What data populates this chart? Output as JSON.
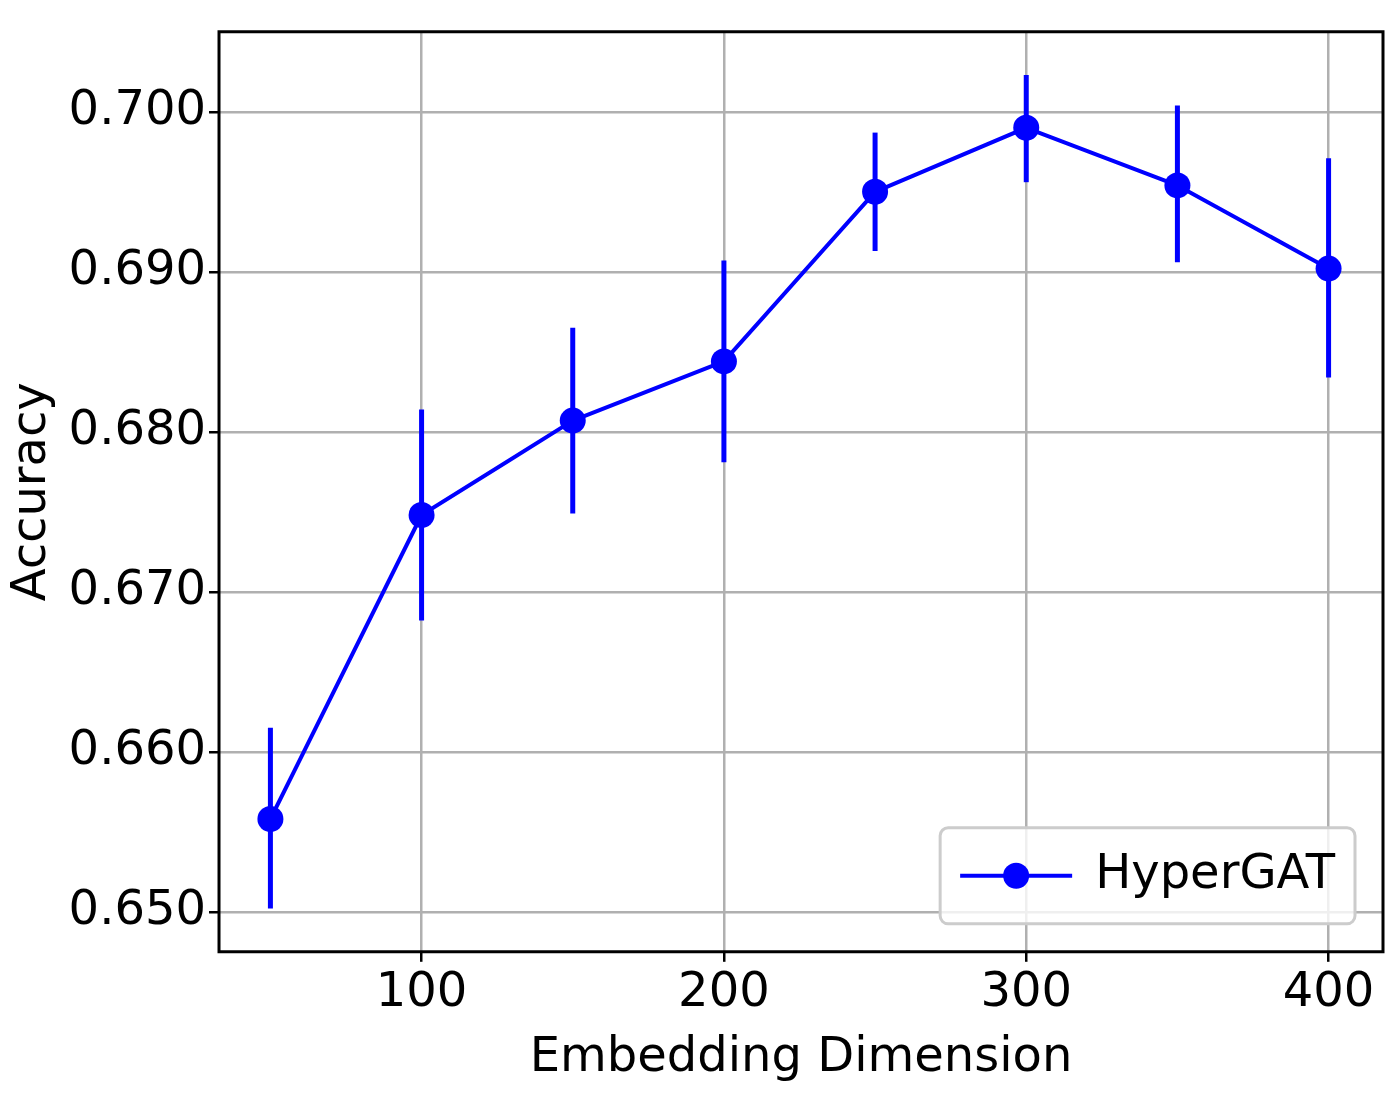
{
  "chart_data": {
    "type": "line",
    "xlabel": "Embedding Dimension",
    "ylabel": "Accuracy",
    "x": [
      50,
      100,
      150,
      200,
      250,
      300,
      350,
      400
    ],
    "series": [
      {
        "name": "HyperGAT",
        "color": "#0000ff",
        "values": [
          0.6558,
          0.6748,
          0.6807,
          0.6844,
          0.695,
          0.699,
          0.6954,
          0.6902
        ],
        "errors": [
          [
            0.6502,
            0.6615
          ],
          [
            0.6682,
            0.6814
          ],
          [
            0.6749,
            0.6865
          ],
          [
            0.6781,
            0.6907
          ],
          [
            0.6913,
            0.6987
          ],
          [
            0.6956,
            0.7023
          ],
          [
            0.6906,
            0.7004
          ],
          [
            0.6834,
            0.6971
          ]
        ]
      }
    ],
    "xlim": [
      33,
      418
    ],
    "xticks": [
      100,
      200,
      300,
      400
    ],
    "ylim": [
      0.6475,
      0.705
    ],
    "yticks": [
      {
        "value": 0.65,
        "label": "0.650"
      },
      {
        "value": 0.66,
        "label": "0.660"
      },
      {
        "value": 0.67,
        "label": "0.670"
      },
      {
        "value": 0.68,
        "label": "0.680"
      },
      {
        "value": 0.69,
        "label": "0.690"
      },
      {
        "value": 0.7,
        "label": "0.700"
      }
    ],
    "grid": true,
    "legend": "bottom right",
    "marker": "circle",
    "line_style": "solid"
  }
}
